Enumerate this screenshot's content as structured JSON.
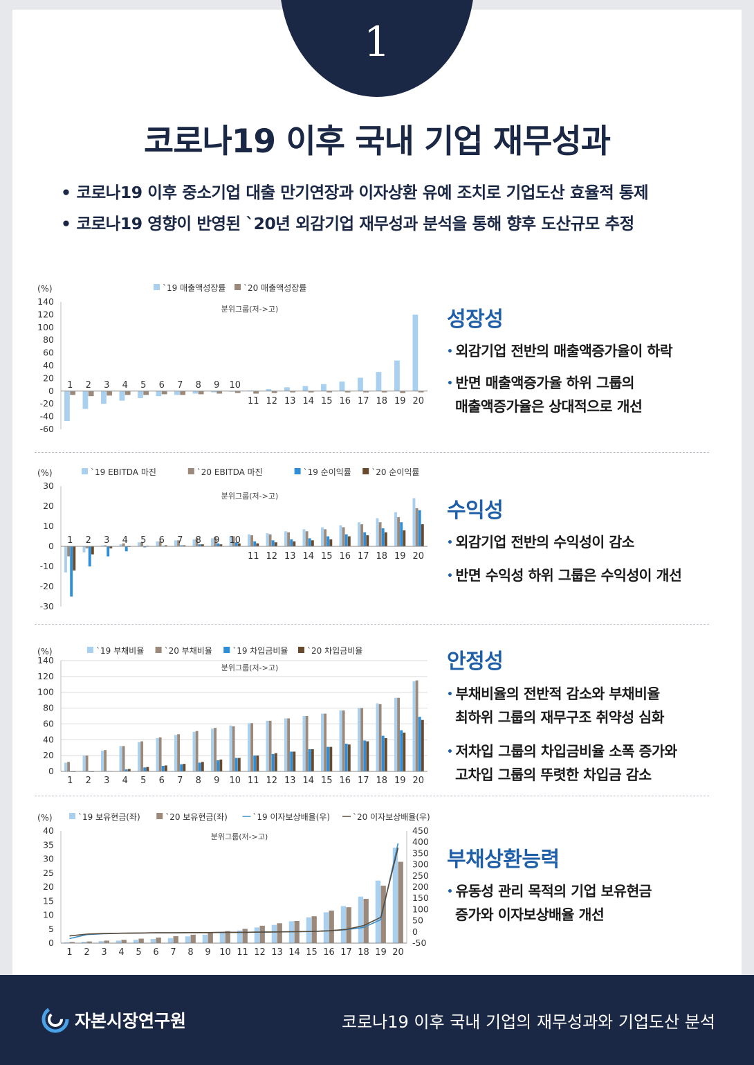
{
  "page": {
    "badge_number": "1",
    "title": "코로나19 이후 국내 기업 재무성과",
    "bullets": [
      "코로나19 이후 중소기업 대출 만기연장과 이자상환 유예 조치로 기업도산 효율적 통제",
      "코로나19 영향이 반영된 `20년 외감기업 재무성과 분석을 통해 향후 도산규모 추정"
    ],
    "bullet_symbol": "•",
    "sub_bullet_symbol": "•"
  },
  "sections": [
    {
      "title": "성장성",
      "lines": [
        "외감기업 전반의 매출액증가율이 하락",
        "반면 매출액증가율 하위 그룹의",
        "매출액증가율은 상대적으로 개선"
      ]
    },
    {
      "title": "수익성",
      "lines": [
        "외감기업 전반의 수익성이 감소",
        "반면 수익성 하위 그룹은 수익성이 개선"
      ]
    },
    {
      "title": "안정성",
      "lines": [
        "부채비율의 전반적 감소와 부채비율",
        "최하위 그룹의  재무구조 취약성 심화",
        "저차입 그룹의 차입금비율 소폭 증가와",
        "고차입 그룹의 뚜렷한 차입금 감소"
      ]
    },
    {
      "title": "부채상환능력",
      "lines": [
        "유동성 관리 목적의 기업 보유현금",
        "증가와 이자보상배율 개선"
      ]
    }
  ],
  "footer": {
    "org_name": "자본시장연구원",
    "caption": "코로나19 이후 국내 기업의 재무성과와 기업도산 분석"
  },
  "colors": {
    "navy": "#1b2845",
    "accent_blue": "#1f5fa8",
    "series_light_blue": "#a9d0ee",
    "series_taupe": "#9b8a7c",
    "series_blue": "#2e8fd8",
    "series_brown": "#6a4a2c",
    "line_19": "#3a8fc8",
    "line_20": "#5a4a38"
  },
  "chart_data": [
    {
      "type": "bar",
      "unit_label": "(%)",
      "inner_label": "분위그룹(저->고)",
      "ylim": [
        -60,
        140
      ],
      "yticks": [
        140,
        120,
        100,
        80,
        60,
        40,
        20,
        0,
        -20,
        -40,
        -60
      ],
      "categories": [
        "1",
        "2",
        "3",
        "4",
        "5",
        "6",
        "7",
        "8",
        "9",
        "10",
        "11",
        "12",
        "13",
        "14",
        "15",
        "16",
        "17",
        "18",
        "19",
        "20"
      ],
      "series": [
        {
          "name": "`19 매출액성장률",
          "color": "#a9d0ee",
          "values": [
            -47,
            -28,
            -20,
            -15,
            -11,
            -8,
            -6,
            -4,
            -2,
            -1,
            1,
            3,
            6,
            8,
            11,
            15,
            21,
            30,
            48,
            120
          ]
        },
        {
          "name": "`20 매출액성장률",
          "color": "#9b8a7c",
          "values": [
            -6,
            -8,
            -7,
            -6,
            -6,
            -5,
            -6,
            -5,
            -4,
            -3,
            -4,
            -3,
            -2,
            -2,
            -2,
            -2,
            -2,
            -2,
            -3,
            -2
          ]
        }
      ]
    },
    {
      "type": "bar",
      "unit_label": "(%)",
      "inner_label": "분위그룹(저->고)",
      "ylim": [
        -30,
        30
      ],
      "yticks": [
        30,
        20,
        10,
        0,
        -10,
        -20,
        -30
      ],
      "categories": [
        "1",
        "2",
        "3",
        "4",
        "5",
        "6",
        "7",
        "8",
        "9",
        "10",
        "11",
        "12",
        "13",
        "14",
        "15",
        "16",
        "17",
        "18",
        "19",
        "20"
      ],
      "series": [
        {
          "name": "`19 EBITDA  마진",
          "color": "#a9d0ee",
          "values": [
            -13,
            -3,
            0.5,
            1,
            2,
            2.5,
            3,
            3.5,
            4,
            5,
            6,
            6.5,
            7.5,
            8.5,
            9.5,
            10.5,
            12,
            14,
            17,
            24
          ]
        },
        {
          "name": "`20 EBITDA  마진",
          "color": "#9b8a7c",
          "values": [
            -5,
            -1,
            0.5,
            1.5,
            2,
            2.5,
            3,
            4,
            4.5,
            5,
            5.5,
            6,
            7,
            7.5,
            8.5,
            9.5,
            11,
            12,
            14.5,
            19
          ]
        },
        {
          "name": "`19 순이익률",
          "color": "#2e8fd8",
          "values": [
            -25,
            -10,
            -5,
            -2.5,
            -0.5,
            0.3,
            0.5,
            1,
            1.5,
            2,
            2.5,
            3,
            3.5,
            4,
            5,
            6,
            7,
            9,
            12,
            18
          ]
        },
        {
          "name": "`20 순이익률",
          "color": "#6a4a2c",
          "values": [
            -12,
            -4,
            -1,
            0,
            0.3,
            0.5,
            0.5,
            1,
            1,
            1.5,
            1.5,
            2,
            2.5,
            3,
            3.5,
            5,
            5.5,
            7,
            8,
            11
          ]
        }
      ]
    },
    {
      "type": "bar",
      "unit_label": "(%)",
      "inner_label": "분위그룹(저->고)",
      "ylim": [
        0,
        140
      ],
      "yticks": [
        140,
        120,
        100,
        80,
        60,
        40,
        20,
        0
      ],
      "categories": [
        "1",
        "2",
        "3",
        "4",
        "5",
        "6",
        "7",
        "8",
        "9",
        "10",
        "11",
        "12",
        "13",
        "14",
        "15",
        "16",
        "17",
        "18",
        "19",
        "20"
      ],
      "series": [
        {
          "name": "`19 부채비율",
          "color": "#a9d0ee",
          "values": [
            11,
            20,
            26,
            32,
            37,
            42,
            46,
            50,
            54,
            58,
            61,
            64,
            67,
            70,
            73,
            77,
            80,
            86,
            93,
            114
          ]
        },
        {
          "name": "`20 부채비율",
          "color": "#9b8a7c",
          "values": [
            12,
            20,
            27,
            32,
            38,
            43,
            47,
            51,
            55,
            57,
            61,
            64,
            67,
            70,
            73,
            77,
            80,
            85,
            93,
            115
          ]
        },
        {
          "name": "`19 차입금비율",
          "color": "#2e8fd8",
          "values": [
            0,
            0,
            0.5,
            2.5,
            5,
            7,
            9,
            11,
            14,
            17,
            20,
            22,
            25,
            28,
            31,
            35,
            39,
            45,
            52,
            69
          ]
        },
        {
          "name": "`20 차입금비율",
          "color": "#6a4a2c",
          "values": [
            0,
            0,
            0.5,
            3,
            5.5,
            7.5,
            9.5,
            12,
            15,
            17,
            20,
            23,
            25,
            28,
            31,
            34,
            38,
            42,
            49,
            65
          ]
        }
      ]
    },
    {
      "type": "bar",
      "unit_label": "(%)",
      "inner_label": "분위그룹(저->고)",
      "ylim": [
        0,
        40
      ],
      "yticks": [
        40,
        35,
        30,
        25,
        20,
        15,
        10,
        5,
        0
      ],
      "ylim_right": [
        -50,
        450
      ],
      "yticks_right": [
        450,
        400,
        350,
        300,
        250,
        200,
        150,
        100,
        50,
        0,
        -50
      ],
      "categories": [
        "1",
        "2",
        "3",
        "4",
        "5",
        "6",
        "7",
        "8",
        "9",
        "10",
        "11",
        "12",
        "13",
        "14",
        "15",
        "16",
        "17",
        "18",
        "19",
        "20"
      ],
      "series": [
        {
          "name": "`19 보유현금(좌)",
          "color": "#a9d0ee",
          "values": [
            0.3,
            0.5,
            0.7,
            0.9,
            1.2,
            1.5,
            1.8,
            2.4,
            3,
            3.8,
            4.5,
            5.6,
            6.5,
            7.8,
            9.2,
            11,
            13.2,
            16.6,
            22.3,
            34
          ]
        },
        {
          "name": "`20 보유현금(좌)",
          "color": "#9b8a7c",
          "values": [
            0.4,
            0.6,
            0.9,
            1.2,
            1.6,
            2,
            2.5,
            3,
            3.6,
            4.3,
            5.1,
            6.2,
            7.1,
            7.9,
            9.6,
            11.6,
            12.8,
            15.8,
            20.5,
            29
          ]
        }
      ],
      "lines": [
        {
          "name": "`19 이자보상배율(우)",
          "color": "#3a8fc8",
          "axis": "right",
          "values": [
            -30,
            -12,
            -8,
            -6,
            -5,
            -4,
            -4,
            -3,
            -3,
            -2,
            -2,
            -1,
            0,
            1,
            2,
            5,
            10,
            20,
            55,
            395
          ]
        },
        {
          "name": "`20 이자보상배율(우)",
          "color": "#5a4a38",
          "axis": "right",
          "values": [
            -18,
            -10,
            -7,
            -6,
            -5,
            -4,
            -4,
            -3,
            -3,
            -2,
            -2,
            -1,
            0,
            1,
            2,
            5,
            11,
            28,
            65,
            375
          ]
        }
      ]
    }
  ]
}
